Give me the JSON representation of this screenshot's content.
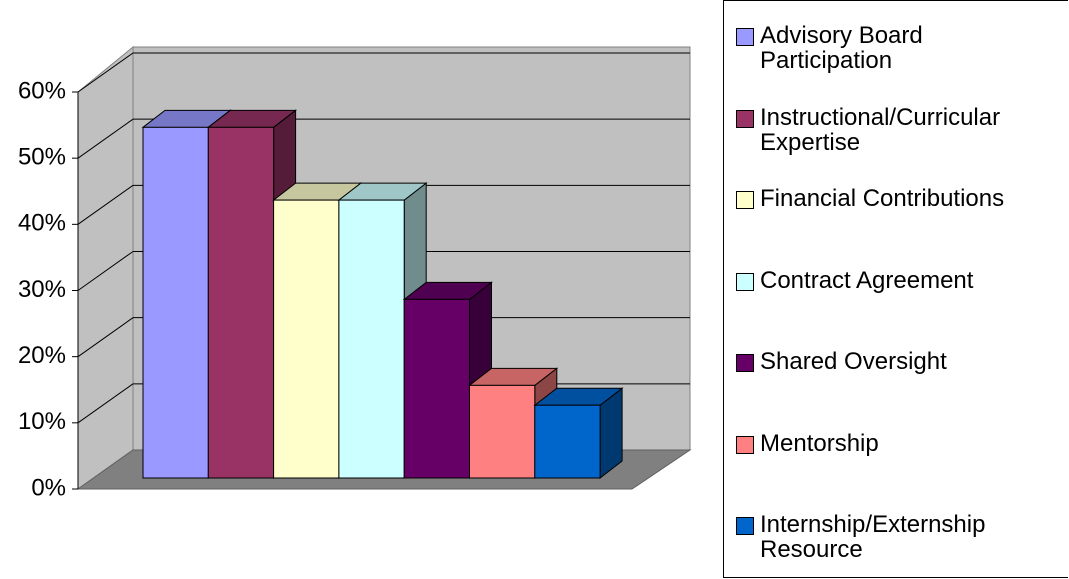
{
  "chart_data": {
    "type": "bar3d",
    "categories": [
      null
    ],
    "series": [
      {
        "name": "Advisory Board Participation",
        "color": "#9999ff",
        "values": [
          53
        ]
      },
      {
        "name": "Instructional/Curricular Expertise",
        "color": "#993366",
        "values": [
          53
        ]
      },
      {
        "name": "Financial Contributions",
        "color": "#ffffcc",
        "values": [
          42
        ]
      },
      {
        "name": "Contract Agreement",
        "color": "#ccffff",
        "values": [
          42
        ]
      },
      {
        "name": "Shared Oversight",
        "color": "#660066",
        "values": [
          27
        ]
      },
      {
        "name": "Mentorship",
        "color": "#ff8080",
        "values": [
          14
        ]
      },
      {
        "name": "Internship/Externship Resource",
        "color": "#0066cc",
        "values": [
          11
        ]
      }
    ],
    "ylim": [
      0,
      60
    ],
    "yticks": [
      {
        "value": 0,
        "label": "0%"
      },
      {
        "value": 10,
        "label": "10%"
      },
      {
        "value": 20,
        "label": "20%"
      },
      {
        "value": 30,
        "label": "30%"
      },
      {
        "value": 40,
        "label": "40%"
      },
      {
        "value": 50,
        "label": "50%"
      },
      {
        "value": 60,
        "label": "60%"
      }
    ],
    "grid": true,
    "legend": "right"
  }
}
